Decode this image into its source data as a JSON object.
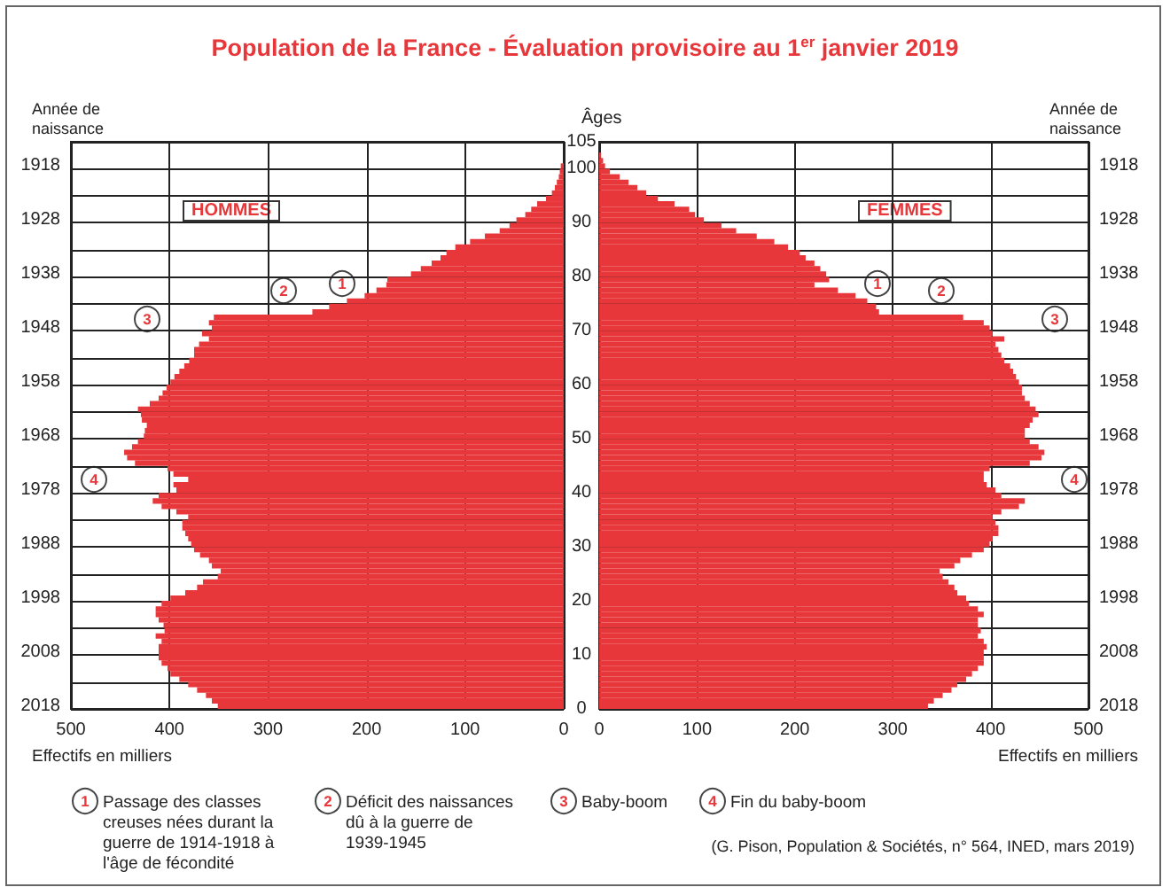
{
  "chart_data": [
    {
      "type": "bar",
      "orientation": "horizontal",
      "title": "Population de la France - Évaluation provisoire au 1$^{er}$ janvier 2019",
      "xlabel": "Effectifs en milliers",
      "ylabel": "Année de naissance",
      "y2label": "Âges",
      "categories": [
        null,
        null,
        null,
        null,
        "1918",
        null,
        null,
        null,
        null,
        null,
        null,
        null,
        null,
        null,
        "1928",
        null,
        null,
        null,
        null,
        null,
        null,
        null,
        null,
        null,
        "1938",
        null,
        null,
        null,
        null,
        null,
        null,
        null,
        null,
        null,
        "1948",
        null,
        null,
        null,
        null,
        null,
        null,
        null,
        null,
        null,
        "1958",
        null,
        null,
        null,
        null,
        null,
        null,
        null,
        null,
        null,
        "1968",
        null,
        null,
        null,
        null,
        null,
        null,
        null,
        null,
        null,
        "1978",
        null,
        null,
        null,
        null,
        null,
        null,
        null,
        null,
        null,
        "1988",
        null,
        null,
        null,
        null,
        null,
        null,
        null,
        null,
        null,
        "1998",
        null,
        null,
        null,
        null,
        null,
        null,
        null,
        null,
        null,
        "2008",
        null,
        null,
        null,
        null,
        null,
        null,
        null,
        null,
        null,
        "2018"
      ],
      "series": [
        {
          "name": "HOMMES",
          "color": "#e8373a",
          "values": [
            0,
            0,
            0,
            0,
            3,
            4,
            5,
            7,
            9,
            12,
            18,
            27,
            33,
            39,
            48,
            55,
            65,
            80,
            95,
            110,
            119,
            125,
            134,
            145,
            155,
            179,
            180,
            190,
            202,
            220,
            238,
            255,
            355,
            360,
            357,
            367,
            360,
            370,
            375,
            375,
            380,
            385,
            390,
            395,
            399,
            403,
            407,
            411,
            420,
            432,
            429,
            428,
            423,
            425,
            426,
            432,
            438,
            446,
            443,
            435,
            402,
            396,
            381,
            396,
            393,
            411,
            417,
            408,
            393,
            381,
            387,
            387,
            384,
            381,
            378,
            375,
            369,
            360,
            357,
            348,
            351,
            366,
            372,
            384,
            399,
            408,
            414,
            414,
            411,
            406,
            405,
            414,
            408,
            411,
            411,
            411,
            408,
            402,
            399,
            390,
            381,
            372,
            363,
            357,
            351
          ]
        }
      ],
      "xlim": [
        500,
        0
      ],
      "xticks": [
        500,
        400,
        300,
        200,
        100,
        0
      ],
      "y2lim": [
        0,
        105
      ],
      "y2ticks": [
        0,
        {
          "value": 5,
          "label": null
        },
        10,
        {
          "value": 15,
          "label": null
        },
        20,
        {
          "value": 25,
          "label": null
        },
        30,
        {
          "value": 35,
          "label": null
        },
        40,
        {
          "value": 45,
          "label": null
        },
        50,
        {
          "value": 55,
          "label": null
        },
        60,
        {
          "value": 65,
          "label": null
        },
        70,
        {
          "value": 75,
          "label": null
        },
        80,
        {
          "value": 85,
          "label": null
        },
        90,
        {
          "value": 95,
          "label": null
        },
        100,
        105
      ],
      "grid": true,
      "annotations": [
        "1",
        "2",
        "3",
        "4",
        "1",
        "Passage des classes creuses nées durant la guerre de 1914-1918 à l'âge de fécondité",
        "2",
        "Déficit des naissances dû à la guerre de 1939-1945",
        "3",
        "Baby-boom",
        "4",
        "Fin du baby-boom",
        "(G. Pison, Population & Sociétés, n° 564, INED, mars 2019)"
      ]
    },
    {
      "type": "bar",
      "orientation": "horizontal",
      "xlabel": "Effectifs en milliers",
      "ylabel": "Année de naissance",
      "categories": [
        null,
        null,
        null,
        null,
        "1918",
        null,
        null,
        null,
        null,
        null,
        null,
        null,
        null,
        null,
        "1928",
        null,
        null,
        null,
        null,
        null,
        null,
        null,
        null,
        null,
        "1938",
        null,
        null,
        null,
        null,
        null,
        null,
        null,
        null,
        null,
        "1948",
        null,
        null,
        null,
        null,
        null,
        null,
        null,
        null,
        null,
        "1958",
        null,
        null,
        null,
        null,
        null,
        null,
        null,
        null,
        null,
        "1968",
        null,
        null,
        null,
        null,
        null,
        null,
        null,
        null,
        null,
        "1978",
        null,
        null,
        null,
        null,
        null,
        null,
        null,
        null,
        null,
        "1988",
        null,
        null,
        null,
        null,
        null,
        null,
        null,
        null,
        null,
        "1998",
        null,
        null,
        null,
        null,
        null,
        null,
        null,
        null,
        null,
        "2008",
        null,
        null,
        null,
        null,
        null,
        null,
        null,
        null,
        null,
        "2018"
      ],
      "series": [
        {
          "name": "FEMMES",
          "color": "#e8373a",
          "values": [
            0,
            0,
            2,
            4,
            6,
            11,
            21,
            30,
            39,
            48,
            60,
            77,
            92,
            98,
            107,
            125,
            140,
            161,
            179,
            193,
            205,
            211,
            220,
            226,
            232,
            235,
            220,
            244,
            262,
            274,
            283,
            286,
            372,
            393,
            399,
            402,
            414,
            405,
            408,
            411,
            414,
            420,
            423,
            426,
            429,
            432,
            432,
            435,
            440,
            446,
            449,
            443,
            440,
            435,
            435,
            440,
            449,
            455,
            452,
            440,
            399,
            393,
            393,
            396,
            405,
            411,
            435,
            429,
            411,
            402,
            405,
            408,
            408,
            402,
            399,
            393,
            381,
            369,
            363,
            348,
            351,
            357,
            363,
            366,
            375,
            378,
            387,
            393,
            387,
            387,
            390,
            387,
            393,
            396,
            393,
            393,
            393,
            387,
            381,
            375,
            366,
            360,
            351,
            342,
            336
          ]
        }
      ],
      "xlim": [
        0,
        500
      ],
      "xticks": [
        0,
        100,
        200,
        300,
        400,
        500
      ],
      "grid": true,
      "annotations": [
        "1",
        "2",
        "3",
        "4"
      ]
    }
  ]
}
